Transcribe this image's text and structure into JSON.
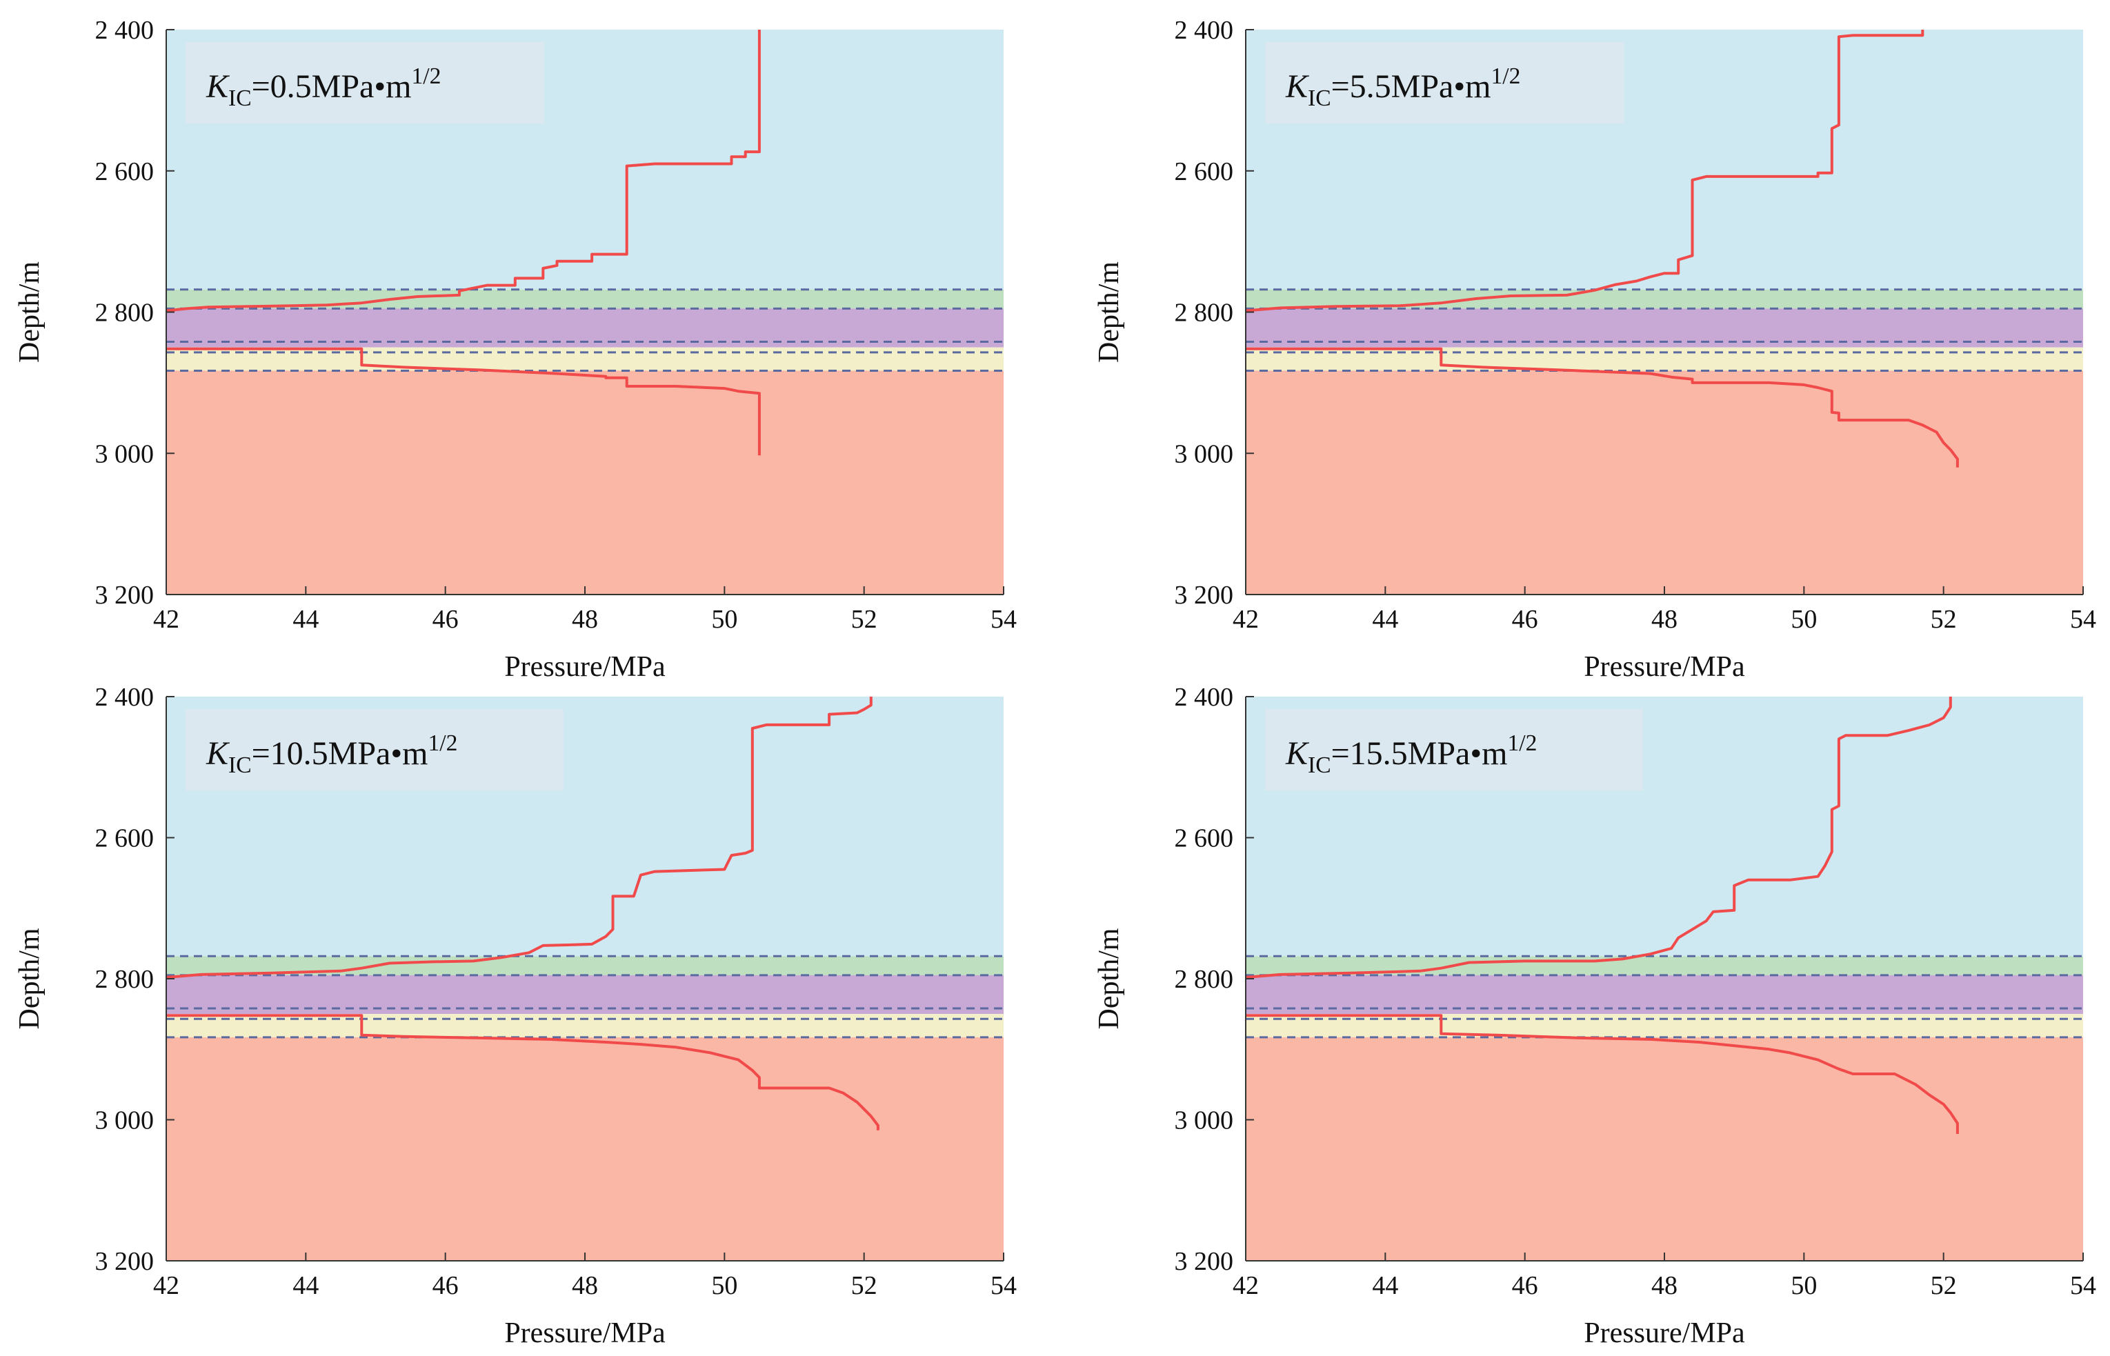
{
  "figure": {
    "xlabel": "Pressure/MPa",
    "ylabel": "Depth/m",
    "xticks": [
      42,
      44,
      46,
      48,
      50,
      52,
      54
    ],
    "yticks": [
      2400,
      2600,
      2800,
      3000,
      3200
    ],
    "ytick_labels": [
      "2 400",
      "2 600",
      "2 800",
      "3 000",
      "3 200"
    ],
    "xlim": [
      42,
      54
    ],
    "ylim": [
      3200,
      2400
    ],
    "layers": [
      {
        "name": "upper-barrier",
        "top": 2400,
        "bottom": 2768,
        "color": "#cfe9f2"
      },
      {
        "name": "interlayer-green",
        "top": 2768,
        "bottom": 2795,
        "color": "#bfe0c0"
      },
      {
        "name": "reservoir-purple",
        "top": 2795,
        "bottom": 2850,
        "color": "#c8a8d4"
      },
      {
        "name": "interlayer-yellow",
        "top": 2850,
        "bottom": 2883,
        "color": "#f3efc8"
      },
      {
        "name": "lower-barrier",
        "top": 2883,
        "bottom": 3200,
        "color": "#fbb7a5"
      }
    ],
    "boundaries": [
      2768,
      2795,
      2842,
      2857,
      2883
    ],
    "colors": {
      "curve": "#f04a4a",
      "boundary": "#5a6aa0",
      "axis": "#333333",
      "labelbox": "#dde8f0"
    }
  },
  "chart_data": [
    {
      "type": "line",
      "title": "",
      "label_sym": "K",
      "label_sub": "IC",
      "label_val": "=0.5MPa•m",
      "label_sup": "1/2",
      "xlabel": "Pressure/MPa",
      "ylabel": "Depth/m",
      "xlim": [
        42,
        54
      ],
      "ylim": [
        3200,
        2400
      ],
      "series": [
        {
          "name": "upper-fracture-front",
          "points": [
            [
              42.0,
              2798
            ],
            [
              42.3,
              2795
            ],
            [
              42.6,
              2793
            ],
            [
              43.2,
              2792
            ],
            [
              43.8,
              2791
            ],
            [
              44.3,
              2790
            ],
            [
              44.8,
              2787
            ],
            [
              45.2,
              2782
            ],
            [
              45.6,
              2778
            ],
            [
              46.2,
              2776
            ],
            [
              46.2,
              2770
            ],
            [
              46.6,
              2762
            ],
            [
              47.0,
              2762
            ],
            [
              47.0,
              2752
            ],
            [
              47.4,
              2752
            ],
            [
              47.4,
              2738
            ],
            [
              47.6,
              2734
            ],
            [
              47.6,
              2728
            ],
            [
              48.1,
              2728
            ],
            [
              48.1,
              2718
            ],
            [
              48.6,
              2718
            ],
            [
              48.6,
              2593
            ],
            [
              49.0,
              2590
            ],
            [
              50.1,
              2590
            ],
            [
              50.1,
              2580
            ],
            [
              50.3,
              2580
            ],
            [
              50.3,
              2573
            ],
            [
              50.5,
              2573
            ],
            [
              50.5,
              2400
            ]
          ]
        },
        {
          "name": "lower-fracture-front",
          "points": [
            [
              42.0,
              2852
            ],
            [
              44.8,
              2852
            ],
            [
              44.8,
              2875
            ],
            [
              45.4,
              2878
            ],
            [
              46.5,
              2882
            ],
            [
              47.6,
              2887
            ],
            [
              48.3,
              2891
            ],
            [
              48.3,
              2893
            ],
            [
              48.6,
              2893
            ],
            [
              48.6,
              2905
            ],
            [
              48.9,
              2905
            ],
            [
              49.3,
              2905
            ],
            [
              50.0,
              2908
            ],
            [
              50.2,
              2912
            ],
            [
              50.5,
              2915
            ],
            [
              50.5,
              3003
            ]
          ]
        }
      ]
    },
    {
      "type": "line",
      "title": "",
      "label_sym": "K",
      "label_sub": "IC",
      "label_val": "=5.5MPa•m",
      "label_sup": "1/2",
      "xlabel": "Pressure/MPa",
      "ylabel": "Depth/m",
      "xlim": [
        42,
        54
      ],
      "ylim": [
        3200,
        2400
      ],
      "series": [
        {
          "name": "upper-fracture-front",
          "points": [
            [
              42.0,
              2798
            ],
            [
              42.5,
              2794
            ],
            [
              43.3,
              2792
            ],
            [
              44.2,
              2791
            ],
            [
              44.8,
              2787
            ],
            [
              45.3,
              2781
            ],
            [
              45.8,
              2777
            ],
            [
              46.6,
              2776
            ],
            [
              47.0,
              2769
            ],
            [
              47.3,
              2761
            ],
            [
              47.6,
              2756
            ],
            [
              47.8,
              2750
            ],
            [
              48.0,
              2745
            ],
            [
              48.2,
              2745
            ],
            [
              48.2,
              2726
            ],
            [
              48.4,
              2720
            ],
            [
              48.4,
              2613
            ],
            [
              48.6,
              2608
            ],
            [
              50.2,
              2608
            ],
            [
              50.2,
              2603
            ],
            [
              50.4,
              2603
            ],
            [
              50.4,
              2540
            ],
            [
              50.5,
              2535
            ],
            [
              50.5,
              2410
            ],
            [
              50.7,
              2408
            ],
            [
              51.7,
              2408
            ],
            [
              51.7,
              2400
            ]
          ]
        },
        {
          "name": "lower-fracture-front",
          "points": [
            [
              42.0,
              2852
            ],
            [
              44.8,
              2852
            ],
            [
              44.8,
              2875
            ],
            [
              45.4,
              2878
            ],
            [
              46.5,
              2882
            ],
            [
              47.8,
              2887
            ],
            [
              48.1,
              2892
            ],
            [
              48.4,
              2895
            ],
            [
              48.4,
              2900
            ],
            [
              49.5,
              2900
            ],
            [
              50.0,
              2903
            ],
            [
              50.2,
              2907
            ],
            [
              50.4,
              2912
            ],
            [
              50.4,
              2942
            ],
            [
              50.5,
              2943
            ],
            [
              50.5,
              2953
            ],
            [
              51.5,
              2953
            ],
            [
              51.7,
              2960
            ],
            [
              51.9,
              2970
            ],
            [
              52.0,
              2985
            ],
            [
              52.1,
              2995
            ],
            [
              52.2,
              3008
            ],
            [
              52.2,
              3020
            ]
          ]
        }
      ]
    },
    {
      "type": "line",
      "title": "",
      "label_sym": "K",
      "label_sub": "IC",
      "label_val": "=10.5MPa•m",
      "label_sup": "1/2",
      "xlabel": "Pressure/MPa",
      "ylabel": "Depth/m",
      "xlim": [
        42,
        54
      ],
      "ylim": [
        3200,
        2400
      ],
      "series": [
        {
          "name": "upper-fracture-front",
          "points": [
            [
              42.0,
              2798
            ],
            [
              42.5,
              2794
            ],
            [
              43.5,
              2792
            ],
            [
              44.5,
              2789
            ],
            [
              44.8,
              2785
            ],
            [
              45.2,
              2778
            ],
            [
              45.8,
              2776
            ],
            [
              46.4,
              2775
            ],
            [
              46.8,
              2770
            ],
            [
              47.2,
              2763
            ],
            [
              47.4,
              2753
            ],
            [
              47.8,
              2752
            ],
            [
              48.1,
              2751
            ],
            [
              48.3,
              2740
            ],
            [
              48.4,
              2730
            ],
            [
              48.4,
              2683
            ],
            [
              48.7,
              2683
            ],
            [
              48.8,
              2653
            ],
            [
              49.0,
              2648
            ],
            [
              50.0,
              2645
            ],
            [
              50.1,
              2625
            ],
            [
              50.3,
              2622
            ],
            [
              50.4,
              2618
            ],
            [
              50.4,
              2445
            ],
            [
              50.6,
              2440
            ],
            [
              51.5,
              2440
            ],
            [
              51.5,
              2425
            ],
            [
              51.9,
              2423
            ],
            [
              52.0,
              2418
            ],
            [
              52.1,
              2412
            ],
            [
              52.1,
              2400
            ]
          ]
        },
        {
          "name": "lower-fracture-front",
          "points": [
            [
              42.0,
              2852
            ],
            [
              44.8,
              2852
            ],
            [
              44.8,
              2880
            ],
            [
              45.4,
              2882
            ],
            [
              46.5,
              2884
            ],
            [
              47.5,
              2886
            ],
            [
              48.3,
              2890
            ],
            [
              48.8,
              2893
            ],
            [
              49.3,
              2897
            ],
            [
              49.8,
              2905
            ],
            [
              50.2,
              2915
            ],
            [
              50.4,
              2930
            ],
            [
              50.5,
              2940
            ],
            [
              50.5,
              2955
            ],
            [
              51.5,
              2955
            ],
            [
              51.7,
              2962
            ],
            [
              51.9,
              2975
            ],
            [
              52.0,
              2985
            ],
            [
              52.1,
              2995
            ],
            [
              52.2,
              3008
            ],
            [
              52.2,
              3015
            ]
          ]
        }
      ]
    },
    {
      "type": "line",
      "title": "",
      "label_sym": "K",
      "label_sub": "IC",
      "label_val": "=15.5MPa•m",
      "label_sup": "1/2",
      "xlabel": "Pressure/MPa",
      "ylabel": "Depth/m",
      "xlim": [
        42,
        54
      ],
      "ylim": [
        3200,
        2400
      ],
      "series": [
        {
          "name": "upper-fracture-front",
          "points": [
            [
              42.0,
              2798
            ],
            [
              42.5,
              2794
            ],
            [
              43.5,
              2792
            ],
            [
              44.5,
              2789
            ],
            [
              44.8,
              2785
            ],
            [
              45.2,
              2777
            ],
            [
              46.0,
              2775
            ],
            [
              47.0,
              2775
            ],
            [
              47.4,
              2772
            ],
            [
              47.8,
              2765
            ],
            [
              48.1,
              2757
            ],
            [
              48.2,
              2742
            ],
            [
              48.4,
              2730
            ],
            [
              48.6,
              2718
            ],
            [
              48.7,
              2705
            ],
            [
              49.0,
              2703
            ],
            [
              49.0,
              2668
            ],
            [
              49.2,
              2660
            ],
            [
              49.8,
              2660
            ],
            [
              50.2,
              2655
            ],
            [
              50.3,
              2640
            ],
            [
              50.4,
              2620
            ],
            [
              50.4,
              2560
            ],
            [
              50.5,
              2555
            ],
            [
              50.5,
              2460
            ],
            [
              50.6,
              2455
            ],
            [
              51.2,
              2455
            ],
            [
              51.5,
              2448
            ],
            [
              51.8,
              2440
            ],
            [
              52.0,
              2430
            ],
            [
              52.1,
              2415
            ],
            [
              52.1,
              2400
            ]
          ]
        },
        {
          "name": "lower-fracture-front",
          "points": [
            [
              42.0,
              2852
            ],
            [
              44.8,
              2852
            ],
            [
              44.8,
              2878
            ],
            [
              45.6,
              2880
            ],
            [
              46.8,
              2884
            ],
            [
              47.8,
              2886
            ],
            [
              48.5,
              2890
            ],
            [
              49.0,
              2895
            ],
            [
              49.5,
              2900
            ],
            [
              49.8,
              2905
            ],
            [
              50.2,
              2915
            ],
            [
              50.5,
              2928
            ],
            [
              50.7,
              2935
            ],
            [
              51.3,
              2935
            ],
            [
              51.6,
              2950
            ],
            [
              51.8,
              2965
            ],
            [
              52.0,
              2978
            ],
            [
              52.1,
              2990
            ],
            [
              52.2,
              3005
            ],
            [
              52.2,
              3020
            ]
          ]
        }
      ]
    }
  ]
}
